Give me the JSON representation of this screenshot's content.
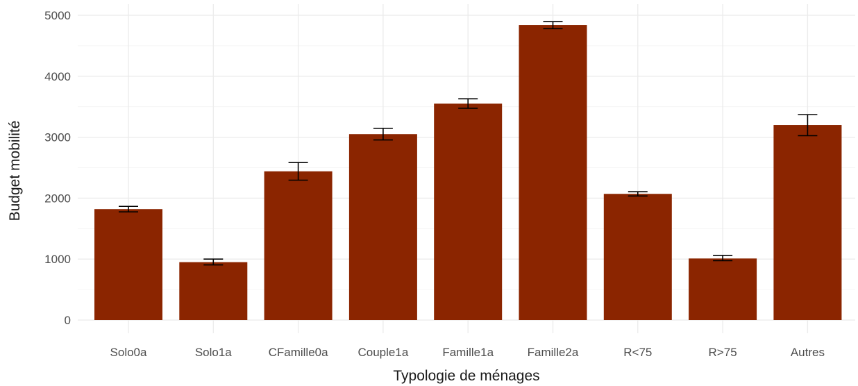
{
  "chart_data": {
    "type": "bar",
    "title": "",
    "xlabel": "Typologie de ménages",
    "ylabel": "Budget mobilité",
    "categories": [
      "Solo0a",
      "Solo1a",
      "CFamille0a",
      "Couple1a",
      "Famille1a",
      "Famille2a",
      "R<75",
      "R>75",
      "Autres"
    ],
    "values": [
      1820,
      950,
      2440,
      3050,
      3550,
      4840,
      2070,
      1010,
      3200
    ],
    "error_low": [
      1775,
      905,
      2295,
      2955,
      3475,
      4780,
      2035,
      975,
      3025
    ],
    "error_high": [
      1865,
      1000,
      2585,
      3145,
      3630,
      4895,
      2105,
      1060,
      3370
    ],
    "ylim": [
      0,
      5000
    ],
    "yticks": [
      0,
      1000,
      2000,
      3000,
      4000,
      5000
    ],
    "grid": true,
    "legend": "none",
    "colors": {
      "bar": "#8B2500",
      "error_bar": "#000000"
    }
  }
}
